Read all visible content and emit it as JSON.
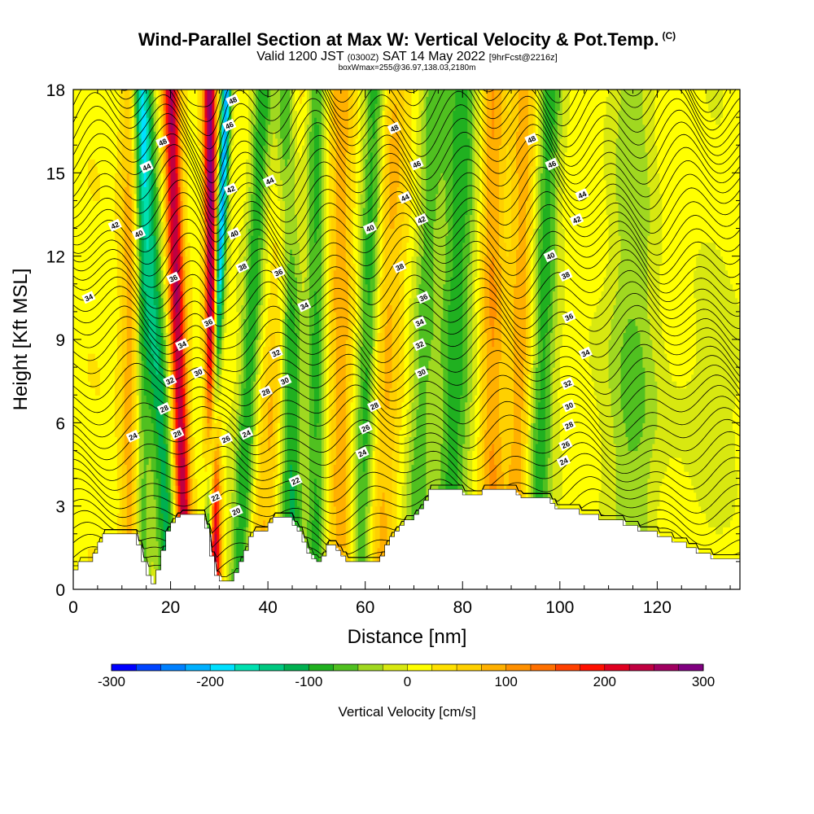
{
  "header": {
    "title": "Wind-Parallel Section at Max W: Vertical Velocity & Pot.Temp.",
    "title_suffix": "(C)",
    "subtitle_a": "Valid 1200 JST",
    "subtitle_b": "(0300Z)",
    "subtitle_c": "SAT 14 May 2022",
    "subtitle_d": "[9hrFcst@2216z]",
    "subtitle2": "boxWmax=255@36.97,138.03,2180m"
  },
  "chart_data": {
    "type": "heatmap",
    "xlabel": "Distance [nm]",
    "ylabel": "Height [Kft MSL]",
    "xlim": [
      0,
      137
    ],
    "ylim": [
      0,
      18
    ],
    "x_ticks": [
      "0",
      "20",
      "40",
      "60",
      "80",
      "100",
      "120"
    ],
    "y_ticks": [
      "0",
      "3",
      "6",
      "9",
      "12",
      "15",
      "18"
    ],
    "colorbar": {
      "label": "Vertical Velocity [cm/s]",
      "min": -300,
      "max": 300,
      "step": 25,
      "tick_labels": [
        "-300",
        "-200",
        "-100",
        "0",
        "100",
        "200",
        "300"
      ],
      "colors": [
        "#0000ff",
        "#0044ff",
        "#0080ff",
        "#00b0ff",
        "#00e0ff",
        "#00e0b0",
        "#00c880",
        "#00b050",
        "#20b020",
        "#50c020",
        "#a0d820",
        "#d8e810",
        "#ffff00",
        "#ffe000",
        "#ffd000",
        "#ffb000",
        "#ff9000",
        "#ff7000",
        "#ff4000",
        "#ff1000",
        "#e00020",
        "#c00040",
        "#a00060",
        "#800080"
      ]
    },
    "terrain_kft": [
      [
        0,
        0.7
      ],
      [
        1,
        1.0
      ],
      [
        3,
        1.0
      ],
      [
        4,
        1.3
      ],
      [
        5,
        1.7
      ],
      [
        6,
        2.0
      ],
      [
        12,
        2.0
      ],
      [
        13,
        1.6
      ],
      [
        14,
        1.0
      ],
      [
        15,
        0.5
      ],
      [
        16,
        0.2
      ],
      [
        17,
        0.7
      ],
      [
        18,
        1.4
      ],
      [
        19,
        2.1
      ],
      [
        20,
        2.4
      ],
      [
        21,
        2.6
      ],
      [
        22,
        2.7
      ],
      [
        26,
        2.7
      ],
      [
        27,
        2.2
      ],
      [
        28,
        1.2
      ],
      [
        29,
        0.5
      ],
      [
        30,
        0.3
      ],
      [
        32,
        0.3
      ],
      [
        33,
        0.6
      ],
      [
        34,
        1.0
      ],
      [
        35,
        1.4
      ],
      [
        36,
        1.9
      ],
      [
        37,
        2.1
      ],
      [
        39,
        2.1
      ],
      [
        40,
        2.4
      ],
      [
        41,
        2.6
      ],
      [
        43,
        2.6
      ],
      [
        45,
        2.3
      ],
      [
        46,
        2.1
      ],
      [
        47,
        1.7
      ],
      [
        48,
        1.3
      ],
      [
        49,
        1.1
      ],
      [
        50,
        1.0
      ],
      [
        51,
        1.2
      ],
      [
        52,
        1.6
      ],
      [
        53,
        1.6
      ],
      [
        54,
        1.4
      ],
      [
        55,
        1.2
      ],
      [
        56,
        1.0
      ],
      [
        62,
        1.0
      ],
      [
        63,
        1.2
      ],
      [
        64,
        1.6
      ],
      [
        65,
        1.9
      ],
      [
        66,
        2.1
      ],
      [
        67,
        2.3
      ],
      [
        68,
        2.5
      ],
      [
        70,
        2.7
      ],
      [
        71,
        2.9
      ],
      [
        72,
        3.2
      ],
      [
        73,
        3.6
      ],
      [
        78,
        3.6
      ],
      [
        80,
        3.4
      ],
      [
        83,
        3.4
      ],
      [
        84,
        3.6
      ],
      [
        90,
        3.6
      ],
      [
        91,
        3.4
      ],
      [
        92,
        3.3
      ],
      [
        96,
        3.3
      ],
      [
        98,
        3.1
      ],
      [
        99,
        2.9
      ],
      [
        103,
        2.9
      ],
      [
        104,
        2.7
      ],
      [
        107,
        2.7
      ],
      [
        108,
        2.5
      ],
      [
        112,
        2.5
      ],
      [
        113,
        2.3
      ],
      [
        115,
        2.3
      ],
      [
        116,
        2.1
      ],
      [
        119,
        2.1
      ],
      [
        120,
        1.9
      ],
      [
        122,
        1.9
      ],
      [
        123,
        1.7
      ],
      [
        125,
        1.7
      ],
      [
        126,
        1.5
      ],
      [
        128,
        1.3
      ],
      [
        131,
        1.1
      ],
      [
        137,
        1.1
      ]
    ],
    "w_features": [
      {
        "x0_nm": 29.0,
        "top_shift_nm": -1,
        "w_cm_s": 275,
        "width_nm": 1.3
      },
      {
        "x0_nm": 27.5,
        "top_shift_nm": 4,
        "w_cm_s": -230,
        "width_nm": 1.0
      },
      {
        "x0_nm": 23.0,
        "top_shift_nm": -3,
        "w_cm_s": 230,
        "width_nm": 1.6
      },
      {
        "x0_nm": 20.0,
        "top_shift_nm": -6,
        "w_cm_s": -130,
        "width_nm": 2.3
      },
      {
        "x0_nm": 14.0,
        "top_shift_nm": 0,
        "w_cm_s": -90,
        "width_nm": 1.8
      },
      {
        "x0_nm": 12.0,
        "top_shift_nm": 0,
        "w_cm_s": 100,
        "width_nm": 2.2
      },
      {
        "x0_nm": 34.0,
        "top_shift_nm": 5,
        "w_cm_s": -110,
        "width_nm": 2.0
      },
      {
        "x0_nm": 38.0,
        "top_shift_nm": 8,
        "w_cm_s": 60,
        "width_nm": 2.5
      },
      {
        "x0_nm": 45.0,
        "top_shift_nm": -1,
        "w_cm_s": -110,
        "width_nm": 2.2
      },
      {
        "x0_nm": 50.0,
        "top_shift_nm": 0,
        "w_cm_s": -90,
        "width_nm": 2.0
      },
      {
        "x0_nm": 55.0,
        "top_shift_nm": 0,
        "w_cm_s": 70,
        "width_nm": 2.5
      },
      {
        "x0_nm": 59.0,
        "top_shift_nm": 3,
        "w_cm_s": -100,
        "width_nm": 2.2
      },
      {
        "x0_nm": 63.0,
        "top_shift_nm": 3,
        "w_cm_s": 75,
        "width_nm": 3.0
      },
      {
        "x0_nm": 70.0,
        "top_shift_nm": 4,
        "w_cm_s": -80,
        "width_nm": 2.5
      },
      {
        "x0_nm": 77.0,
        "top_shift_nm": 3,
        "w_cm_s": -95,
        "width_nm": 3.5
      },
      {
        "x0_nm": 86.0,
        "top_shift_nm": 0,
        "w_cm_s": 85,
        "width_nm": 2.5
      },
      {
        "x0_nm": 91.0,
        "top_shift_nm": 2,
        "w_cm_s": 75,
        "width_nm": 2.5
      },
      {
        "x0_nm": 95.0,
        "top_shift_nm": 3,
        "w_cm_s": -90,
        "width_nm": 2.5
      },
      {
        "x0_nm": 115.0,
        "top_shift_nm": 0,
        "w_cm_s": -45,
        "width_nm": 5.0
      }
    ],
    "isentrope_labels": [
      {
        "text": "48",
        "x": 18.4,
        "y": 16.1
      },
      {
        "text": "44",
        "x": 15.1,
        "y": 15.2
      },
      {
        "text": "42",
        "x": 8.6,
        "y": 13.1
      },
      {
        "text": "40",
        "x": 13.5,
        "y": 12.8
      },
      {
        "text": "34",
        "x": 3.2,
        "y": 10.5
      },
      {
        "text": "36",
        "x": 20.6,
        "y": 11.2
      },
      {
        "text": "34",
        "x": 22.4,
        "y": 8.8
      },
      {
        "text": "32",
        "x": 19.9,
        "y": 7.5
      },
      {
        "text": "28",
        "x": 18.7,
        "y": 6.5
      },
      {
        "text": "24",
        "x": 12.3,
        "y": 5.5
      },
      {
        "text": "28",
        "x": 21.4,
        "y": 5.6
      },
      {
        "text": "30",
        "x": 25.7,
        "y": 7.8
      },
      {
        "text": "36",
        "x": 27.8,
        "y": 9.6
      },
      {
        "text": "26",
        "x": 31.4,
        "y": 5.4
      },
      {
        "text": "24",
        "x": 35.6,
        "y": 5.6
      },
      {
        "text": "22",
        "x": 29.2,
        "y": 3.3
      },
      {
        "text": "20",
        "x": 33.5,
        "y": 2.8
      },
      {
        "text": "48",
        "x": 32.8,
        "y": 17.6
      },
      {
        "text": "46",
        "x": 32.1,
        "y": 16.7
      },
      {
        "text": "42",
        "x": 32.4,
        "y": 14.4
      },
      {
        "text": "40",
        "x": 33.1,
        "y": 12.8
      },
      {
        "text": "38",
        "x": 34.8,
        "y": 11.6
      },
      {
        "text": "44",
        "x": 40.4,
        "y": 14.7
      },
      {
        "text": "36",
        "x": 42.2,
        "y": 11.4
      },
      {
        "text": "34",
        "x": 47.5,
        "y": 10.2
      },
      {
        "text": "32",
        "x": 41.7,
        "y": 8.5
      },
      {
        "text": "30",
        "x": 43.5,
        "y": 7.5
      },
      {
        "text": "28",
        "x": 39.6,
        "y": 7.1
      },
      {
        "text": "22",
        "x": 45.7,
        "y": 3.9
      },
      {
        "text": "48",
        "x": 66.0,
        "y": 16.6
      },
      {
        "text": "46",
        "x": 70.6,
        "y": 15.3
      },
      {
        "text": "44",
        "x": 68.2,
        "y": 14.1
      },
      {
        "text": "42",
        "x": 71.6,
        "y": 13.3
      },
      {
        "text": "40",
        "x": 61.0,
        "y": 13.0
      },
      {
        "text": "38",
        "x": 67.1,
        "y": 11.6
      },
      {
        "text": "36",
        "x": 72.0,
        "y": 10.5
      },
      {
        "text": "34",
        "x": 71.2,
        "y": 9.6
      },
      {
        "text": "32",
        "x": 71.2,
        "y": 8.8
      },
      {
        "text": "30",
        "x": 71.6,
        "y": 7.8
      },
      {
        "text": "28",
        "x": 61.9,
        "y": 6.6
      },
      {
        "text": "26",
        "x": 60.1,
        "y": 5.8
      },
      {
        "text": "24",
        "x": 59.4,
        "y": 4.9
      },
      {
        "text": "48",
        "x": 94.2,
        "y": 16.2
      },
      {
        "text": "46",
        "x": 98.4,
        "y": 15.3
      },
      {
        "text": "44",
        "x": 104.6,
        "y": 14.2
      },
      {
        "text": "42",
        "x": 103.5,
        "y": 13.3
      },
      {
        "text": "40",
        "x": 98.1,
        "y": 12.0
      },
      {
        "text": "38",
        "x": 101.2,
        "y": 11.3
      },
      {
        "text": "36",
        "x": 101.9,
        "y": 9.8
      },
      {
        "text": "34",
        "x": 105.3,
        "y": 8.5
      },
      {
        "text": "32",
        "x": 101.6,
        "y": 7.4
      },
      {
        "text": "30",
        "x": 101.9,
        "y": 6.6
      },
      {
        "text": "28",
        "x": 101.9,
        "y": 5.9
      },
      {
        "text": "26",
        "x": 101.2,
        "y": 5.2
      },
      {
        "text": "24",
        "x": 100.8,
        "y": 4.6
      }
    ]
  }
}
